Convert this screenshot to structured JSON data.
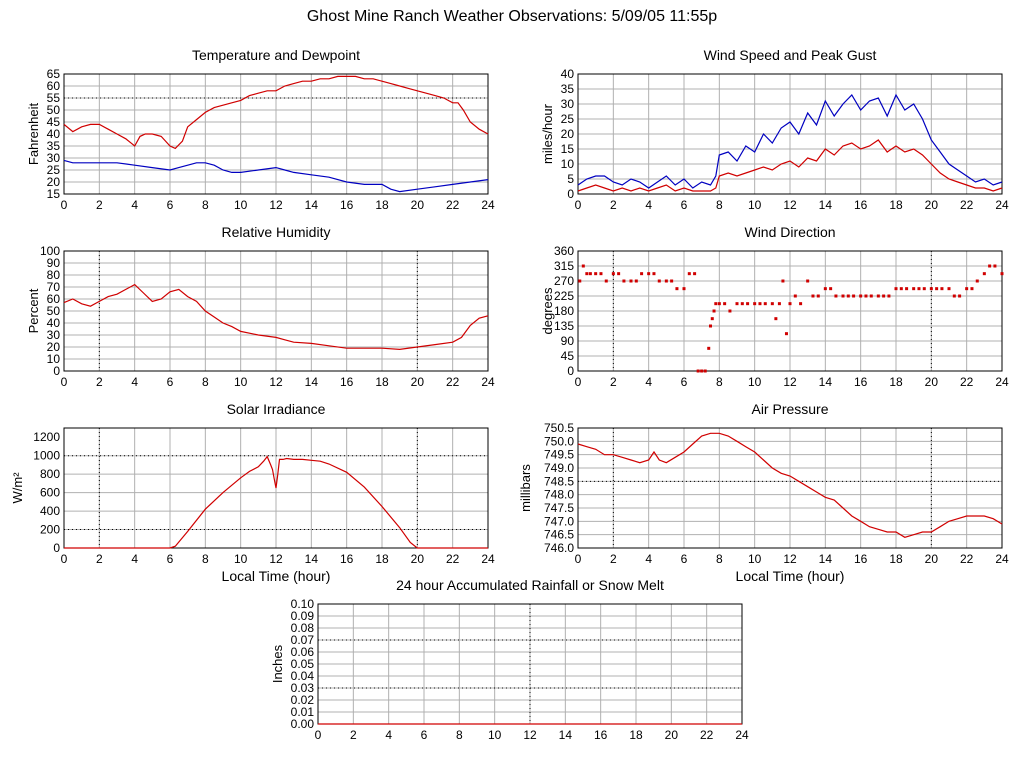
{
  "page_title": "Ghost Mine Ranch Weather Observations: 5/09/05 11:55p",
  "chart_data": [
    {
      "id": "temp",
      "type": "line",
      "title": "Temperature and Dewpoint",
      "xlabel": "",
      "ylabel": "Fahrenheit",
      "xlim": [
        0,
        24
      ],
      "ylim": [
        15,
        65
      ],
      "xticks": [
        0,
        2,
        4,
        6,
        8,
        10,
        12,
        14,
        16,
        18,
        20,
        22,
        24
      ],
      "yticks": [
        15,
        20,
        25,
        30,
        35,
        40,
        45,
        50,
        55,
        60,
        65
      ],
      "grid": true,
      "series": [
        {
          "color": "#d00000",
          "x": [
            0,
            0.5,
            1,
            1.5,
            2,
            2.5,
            3,
            3.5,
            4,
            4.3,
            4.6,
            5,
            5.5,
            6,
            6.3,
            6.7,
            7,
            7.5,
            8,
            8.5,
            9,
            9.5,
            10,
            10.5,
            11,
            11.5,
            12,
            12.5,
            13,
            13.5,
            14,
            14.5,
            15,
            15.5,
            16,
            16.5,
            17,
            17.5,
            18,
            18.5,
            19,
            19.5,
            20,
            20.5,
            21,
            21.5,
            22,
            22.3,
            22.6,
            23,
            23.5,
            24
          ],
          "y": [
            44,
            41,
            43,
            44,
            44,
            42,
            40,
            38,
            35,
            39,
            40,
            40,
            39,
            35,
            34,
            37,
            43,
            46,
            49,
            51,
            52,
            53,
            54,
            56,
            57,
            58,
            58,
            60,
            61,
            62,
            62,
            63,
            63,
            64,
            64,
            64,
            63,
            63,
            62,
            61,
            60,
            59,
            58,
            57,
            56,
            55,
            53,
            53,
            50,
            45,
            42,
            40
          ]
        },
        {
          "color": "#0000c0",
          "x": [
            0,
            0.5,
            1,
            2,
            3,
            4,
            5,
            6,
            6.5,
            7,
            7.5,
            8,
            8.5,
            9,
            9.5,
            10,
            11,
            12,
            12.5,
            13,
            14,
            15,
            16,
            17,
            18,
            18.5,
            19,
            20,
            21,
            22,
            23,
            24
          ],
          "y": [
            29,
            28,
            28,
            28,
            28,
            27,
            26,
            25,
            26,
            27,
            28,
            28,
            27,
            25,
            24,
            24,
            25,
            26,
            25,
            24,
            23,
            22,
            20,
            19,
            19,
            17,
            16,
            17,
            18,
            19,
            20,
            21
          ]
        }
      ]
    },
    {
      "id": "wind",
      "type": "line",
      "title": "Wind Speed and Peak Gust",
      "xlabel": "",
      "ylabel": "miles/hour",
      "xlim": [
        0,
        24
      ],
      "ylim": [
        0,
        40
      ],
      "xticks": [
        0,
        2,
        4,
        6,
        8,
        10,
        12,
        14,
        16,
        18,
        20,
        22,
        24
      ],
      "yticks": [
        0,
        5,
        10,
        15,
        20,
        25,
        30,
        35,
        40
      ],
      "grid": true,
      "series": [
        {
          "color": "#0000c0",
          "x": [
            0,
            0.5,
            1,
            1.5,
            2,
            2.5,
            3,
            3.5,
            4,
            4.5,
            5,
            5.5,
            6,
            6.5,
            7,
            7.5,
            7.8,
            8,
            8.5,
            9,
            9.5,
            10,
            10.5,
            11,
            11.5,
            12,
            12.5,
            13,
            13.5,
            14,
            14.5,
            15,
            15.5,
            16,
            16.5,
            17,
            17.5,
            18,
            18.5,
            19,
            19.5,
            20,
            20.5,
            21,
            21.5,
            22,
            22.5,
            23,
            23.5,
            24
          ],
          "y": [
            3,
            5,
            6,
            6,
            4,
            3,
            5,
            4,
            2,
            4,
            6,
            3,
            5,
            2,
            4,
            3,
            6,
            13,
            14,
            11,
            16,
            14,
            20,
            17,
            22,
            24,
            20,
            27,
            23,
            31,
            26,
            30,
            33,
            28,
            31,
            32,
            26,
            33,
            28,
            30,
            25,
            18,
            14,
            10,
            8,
            6,
            4,
            5,
            3,
            4
          ]
        },
        {
          "color": "#d00000",
          "x": [
            0,
            0.5,
            1,
            1.5,
            2,
            2.5,
            3,
            3.5,
            4,
            4.5,
            5,
            5.5,
            6,
            6.5,
            7,
            7.5,
            7.8,
            8,
            8.5,
            9,
            9.5,
            10,
            10.5,
            11,
            11.5,
            12,
            12.5,
            13,
            13.5,
            14,
            14.5,
            15,
            15.5,
            16,
            16.5,
            17,
            17.5,
            18,
            18.5,
            19,
            19.5,
            20,
            20.5,
            21,
            21.5,
            22,
            22.5,
            23,
            23.5,
            24
          ],
          "y": [
            1,
            2,
            3,
            2,
            1,
            2,
            1,
            2,
            1,
            2,
            3,
            1,
            2,
            1,
            1,
            1,
            2,
            6,
            7,
            6,
            7,
            8,
            9,
            8,
            10,
            11,
            9,
            12,
            11,
            15,
            13,
            16,
            17,
            15,
            16,
            18,
            14,
            16,
            14,
            15,
            13,
            10,
            7,
            5,
            4,
            3,
            2,
            2,
            1,
            2
          ]
        }
      ]
    },
    {
      "id": "humidity",
      "type": "line",
      "title": "Relative Humidity",
      "xlabel": "",
      "ylabel": "Percent",
      "xlim": [
        0,
        24
      ],
      "ylim": [
        0,
        100
      ],
      "xticks": [
        0,
        2,
        4,
        6,
        8,
        10,
        12,
        14,
        16,
        18,
        20,
        22,
        24
      ],
      "yticks": [
        0,
        10,
        20,
        30,
        40,
        50,
        60,
        70,
        80,
        90,
        100
      ],
      "grid": true,
      "series": [
        {
          "color": "#d00000",
          "x": [
            0,
            0.5,
            1,
            1.5,
            2,
            2.5,
            3,
            3.5,
            4,
            4.5,
            5,
            5.5,
            6,
            6.5,
            7,
            7.5,
            8,
            8.5,
            9,
            9.5,
            10,
            11,
            12,
            12.5,
            13,
            14,
            15,
            16,
            17,
            18,
            19,
            20,
            21,
            22,
            22.5,
            23,
            23.5,
            24
          ],
          "y": [
            57,
            60,
            56,
            54,
            58,
            62,
            64,
            68,
            72,
            65,
            58,
            60,
            66,
            68,
            62,
            58,
            50,
            45,
            40,
            37,
            33,
            30,
            28,
            26,
            24,
            23,
            21,
            19,
            19,
            19,
            18,
            20,
            22,
            24,
            28,
            38,
            44,
            46
          ]
        }
      ]
    },
    {
      "id": "winddir",
      "type": "scatter",
      "title": "Wind Direction",
      "xlabel": "",
      "ylabel": "degrees",
      "xlim": [
        0,
        24
      ],
      "ylim": [
        0,
        360
      ],
      "xticks": [
        0,
        2,
        4,
        6,
        8,
        10,
        12,
        14,
        16,
        18,
        20,
        22,
        24
      ],
      "yticks": [
        0,
        45,
        90,
        135,
        180,
        225,
        270,
        315,
        360
      ],
      "grid": true,
      "series": [
        {
          "color": "#d00000",
          "x": [
            0.1,
            0.3,
            0.5,
            0.7,
            1,
            1.3,
            1.6,
            2,
            2.3,
            2.6,
            3,
            3.3,
            3.6,
            4,
            4.3,
            4.6,
            5,
            5.3,
            5.6,
            6,
            6.3,
            6.6,
            6.8,
            7,
            7.2,
            7.4,
            7.5,
            7.6,
            7.7,
            7.8,
            8,
            8.3,
            8.6,
            9,
            9.3,
            9.6,
            10,
            10.3,
            10.6,
            11,
            11.2,
            11.4,
            11.6,
            11.8,
            12,
            12.3,
            12.6,
            13,
            13.3,
            13.6,
            14,
            14.3,
            14.6,
            15,
            15.3,
            15.6,
            16,
            16.3,
            16.6,
            17,
            17.3,
            17.6,
            18,
            18.3,
            18.6,
            19,
            19.3,
            19.6,
            20,
            20.3,
            20.6,
            21,
            21.3,
            21.6,
            22,
            22.3,
            22.6,
            23,
            23.3,
            23.6,
            24
          ],
          "y": [
            270,
            315,
            292,
            292,
            292,
            292,
            270,
            292,
            292,
            270,
            270,
            270,
            292,
            292,
            292,
            270,
            270,
            270,
            247,
            247,
            292,
            292,
            0,
            0,
            0,
            68,
            135,
            157,
            180,
            202,
            202,
            202,
            180,
            202,
            202,
            202,
            202,
            202,
            202,
            202,
            157,
            202,
            270,
            112,
            202,
            225,
            202,
            270,
            225,
            225,
            247,
            247,
            225,
            225,
            225,
            225,
            225,
            225,
            225,
            225,
            225,
            225,
            247,
            247,
            247,
            247,
            247,
            247,
            247,
            247,
            247,
            247,
            225,
            225,
            247,
            247,
            270,
            292,
            315,
            315,
            292
          ]
        }
      ]
    },
    {
      "id": "solar",
      "type": "line",
      "title": "Solar Irradiance",
      "xlabel": "Local Time (hour)",
      "ylabel": "W/m²",
      "xlim": [
        0,
        24
      ],
      "ylim": [
        0,
        1300
      ],
      "xticks": [
        0,
        2,
        4,
        6,
        8,
        10,
        12,
        14,
        16,
        18,
        20,
        22,
        24
      ],
      "yticks": [
        0,
        200,
        400,
        600,
        800,
        1000,
        1200
      ],
      "grid": true,
      "series": [
        {
          "color": "#d00000",
          "x": [
            0,
            2,
            4,
            6,
            6.3,
            7,
            8,
            9,
            10,
            10.5,
            11,
            11.3,
            11.5,
            11.7,
            11.8,
            11.9,
            12,
            12.1,
            12.2,
            12.4,
            12.6,
            13,
            13.5,
            14,
            14.5,
            15,
            16,
            17,
            18,
            19,
            19.6,
            20,
            22,
            24
          ],
          "y": [
            0,
            0,
            0,
            0,
            20,
            180,
            420,
            600,
            760,
            830,
            880,
            940,
            990,
            900,
            850,
            750,
            650,
            800,
            960,
            960,
            970,
            960,
            960,
            950,
            940,
            910,
            820,
            660,
            450,
            220,
            60,
            0,
            0,
            0
          ]
        }
      ]
    },
    {
      "id": "pressure",
      "type": "line",
      "title": "Air Pressure",
      "xlabel": "Local Time (hour)",
      "ylabel": "millibars",
      "xlim": [
        0,
        24
      ],
      "ylim": [
        746.0,
        750.5
      ],
      "xticks": [
        0,
        2,
        4,
        6,
        8,
        10,
        12,
        14,
        16,
        18,
        20,
        22,
        24
      ],
      "yticks": [
        746.0,
        746.5,
        747.0,
        747.5,
        748.0,
        748.5,
        749.0,
        749.5,
        750.0,
        750.5
      ],
      "grid": true,
      "series": [
        {
          "color": "#d00000",
          "x": [
            0,
            0.5,
            1,
            1.5,
            2,
            2.5,
            3,
            3.5,
            4,
            4.3,
            4.6,
            5,
            5.5,
            6,
            6.5,
            7,
            7.5,
            8,
            8.5,
            9,
            9.5,
            10,
            10.5,
            11,
            11.5,
            12,
            12.5,
            13,
            13.5,
            14,
            14.5,
            15,
            15.5,
            16,
            16.5,
            17,
            17.5,
            18,
            18.5,
            19,
            19.5,
            20,
            20.5,
            21,
            21.5,
            22,
            22.5,
            23,
            23.5,
            24
          ],
          "y": [
            749.9,
            749.8,
            749.7,
            749.5,
            749.5,
            749.4,
            749.3,
            749.2,
            749.3,
            749.6,
            749.3,
            749.2,
            749.4,
            749.6,
            749.9,
            750.2,
            750.3,
            750.3,
            750.2,
            750.0,
            749.8,
            749.6,
            749.3,
            749.0,
            748.8,
            748.7,
            748.5,
            748.3,
            748.1,
            747.9,
            747.8,
            747.5,
            747.2,
            747.0,
            746.8,
            746.7,
            746.6,
            746.6,
            746.4,
            746.5,
            746.6,
            746.6,
            746.8,
            747.0,
            747.1,
            747.2,
            747.2,
            747.2,
            747.1,
            746.9
          ]
        }
      ]
    },
    {
      "id": "rain",
      "type": "line",
      "title": "24 hour Accumulated Rainfall or Snow Melt",
      "xlabel": "",
      "ylabel": "Inches",
      "xlim": [
        0,
        24
      ],
      "ylim": [
        0,
        0.1
      ],
      "xticks": [
        0,
        2,
        4,
        6,
        8,
        10,
        12,
        14,
        16,
        18,
        20,
        22,
        24
      ],
      "yticks": [
        0.0,
        0.01,
        0.02,
        0.03,
        0.04,
        0.05,
        0.06,
        0.07,
        0.08,
        0.09,
        0.1
      ],
      "grid": true,
      "series": [
        {
          "color": "#d00000",
          "x": [
            0,
            24
          ],
          "y": [
            0,
            0
          ]
        }
      ]
    }
  ]
}
